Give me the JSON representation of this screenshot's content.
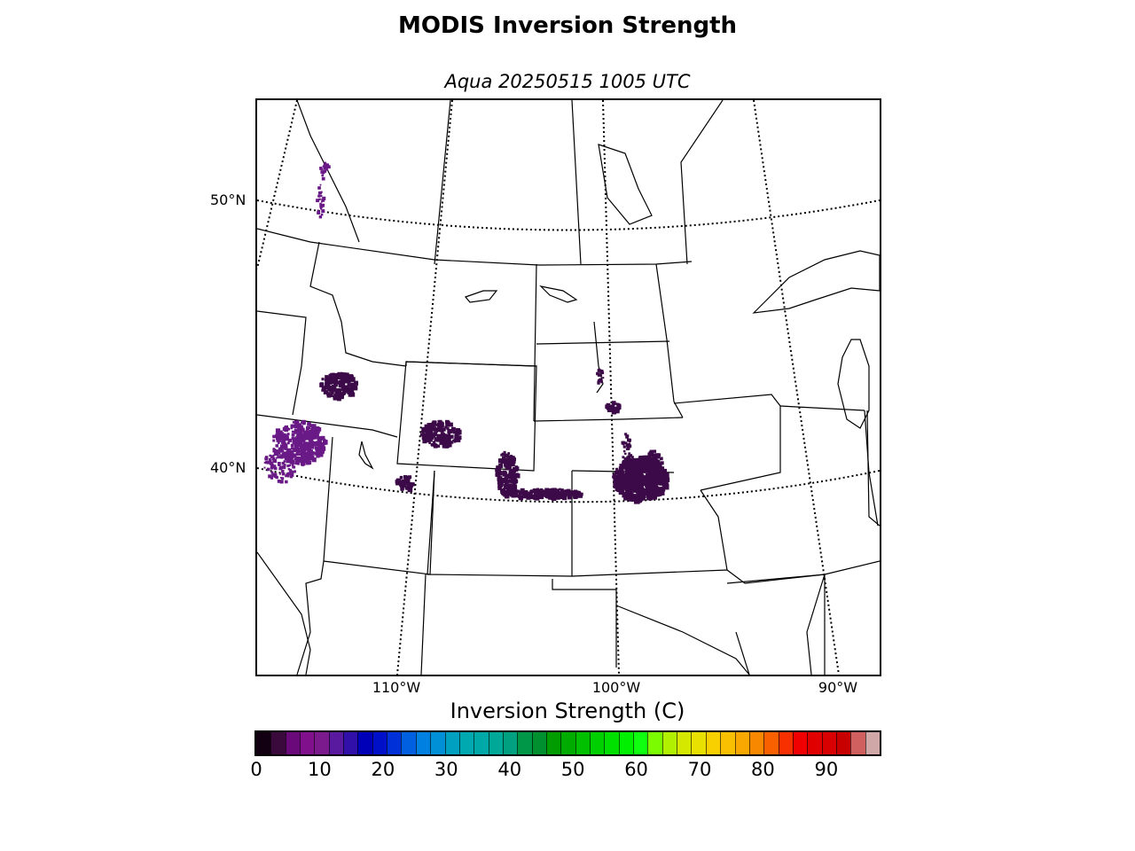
{
  "figure": {
    "title": "MODIS Inversion Strength",
    "subtitle": "Aqua 20250515 1005 UTC"
  },
  "map": {
    "lat_labels": [
      "50°N",
      "40°N"
    ],
    "lon_labels": [
      "110°W",
      "100°W",
      "90°W"
    ],
    "inversion_color": "#3c0a48",
    "inversion_color_alt": "#6a1a86"
  },
  "colorbar": {
    "title": "Inversion Strength (C)",
    "min": 0,
    "max": 98,
    "tick_labels": [
      "0",
      "10",
      "20",
      "30",
      "40",
      "50",
      "60",
      "70",
      "80",
      "90"
    ],
    "colors": [
      "#120012",
      "#3a0a3c",
      "#6a0a7a",
      "#80108c",
      "#7a1a8c",
      "#5a1aa0",
      "#3010a8",
      "#0000b8",
      "#0010c8",
      "#0030d8",
      "#0060e0",
      "#0080e0",
      "#0090d8",
      "#00a0c0",
      "#00a8b0",
      "#00a8a8",
      "#00a898",
      "#00a080",
      "#009848",
      "#009030",
      "#009c00",
      "#00ac00",
      "#00c000",
      "#00d000",
      "#00e000",
      "#00f000",
      "#10ff10",
      "#7cfc00",
      "#b0f000",
      "#d4e800",
      "#e8e000",
      "#f8d000",
      "#f8c000",
      "#f8a800",
      "#f88800",
      "#f86000",
      "#f83000",
      "#f00000",
      "#e00000",
      "#d80000",
      "#c80000",
      "#d06060",
      "#d0a8a8"
    ]
  }
}
